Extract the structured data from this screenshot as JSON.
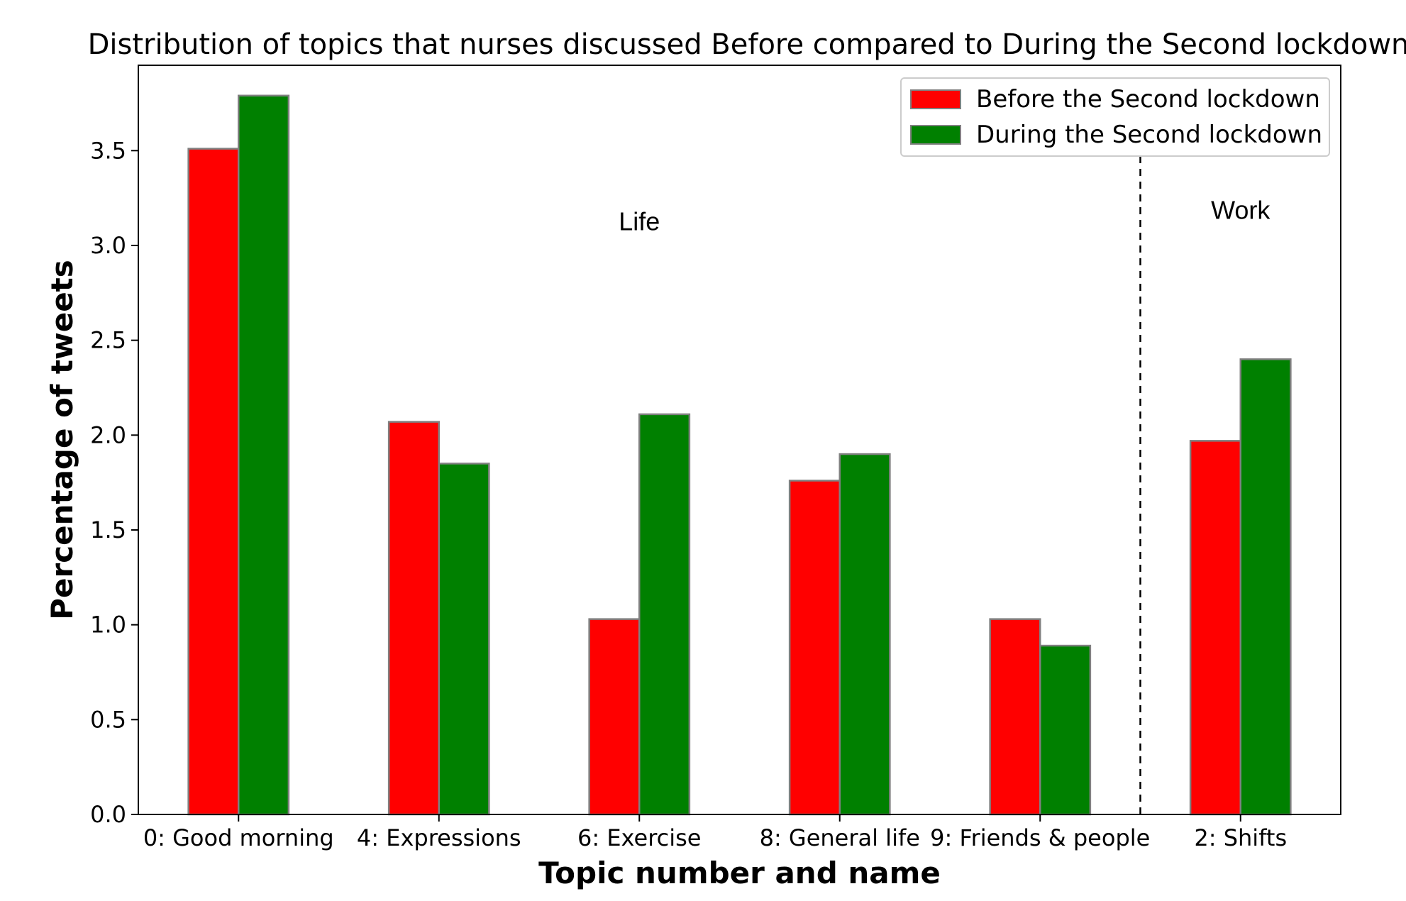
{
  "chart_data": {
    "type": "bar",
    "title": "Distribution of topics that nurses discussed Before compared to During the Second lockdown",
    "xlabel": "Topic number and name",
    "ylabel": "Percentage of tweets",
    "categories": [
      "0: Good morning",
      "4: Expressions",
      "6: Exercise",
      "8: General life",
      "9: Friends & people",
      "2: Shifts"
    ],
    "series": [
      {
        "name": "Before the Second lockdown",
        "color": "#ff0000",
        "values": [
          3.51,
          2.07,
          1.03,
          1.76,
          1.03,
          1.97
        ]
      },
      {
        "name": "During the Second lockdown",
        "color": "#008000",
        "values": [
          3.79,
          1.85,
          2.11,
          1.9,
          0.89,
          2.4
        ]
      }
    ],
    "ylim": [
      0,
      3.95
    ],
    "yticks": [
      "0.0",
      "0.5",
      "1.0",
      "1.5",
      "2.0",
      "2.5",
      "3.0",
      "3.5"
    ],
    "bar_edge_color": "#808080",
    "grid": false,
    "legend_position": "top-right",
    "annotations": [
      {
        "text": "Life",
        "group": "left"
      },
      {
        "text": "Work",
        "group": "right"
      }
    ],
    "separator": {
      "style": "dashed",
      "between_categories": [
        4,
        5
      ]
    }
  }
}
